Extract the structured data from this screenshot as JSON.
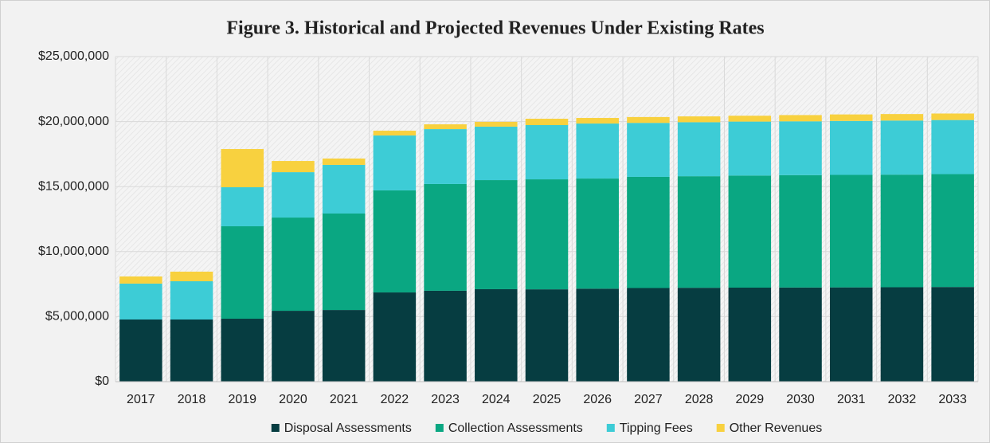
{
  "chart_data": {
    "type": "stacked_bar",
    "title": "Figure 3. Historical and Projected Revenues Under Existing Rates",
    "categories": [
      "2017",
      "2018",
      "2019",
      "2020",
      "2021",
      "2022",
      "2023",
      "2024",
      "2025",
      "2026",
      "2027",
      "2028",
      "2029",
      "2030",
      "2031",
      "2032",
      "2033"
    ],
    "series": [
      {
        "name": "Disposal Assessments",
        "color": "#063d41",
        "values": [
          4780000,
          4780000,
          4840000,
          5450000,
          5510000,
          6860000,
          6990000,
          7110000,
          7100000,
          7150000,
          7200000,
          7220000,
          7230000,
          7240000,
          7250000,
          7260000,
          7280000
        ]
      },
      {
        "name": "Collection Assessments",
        "color": "#0aa782",
        "values": [
          0,
          0,
          7110000,
          7170000,
          7420000,
          7850000,
          8210000,
          8390000,
          8460000,
          8470000,
          8550000,
          8580000,
          8620000,
          8640000,
          8650000,
          8660000,
          8680000
        ]
      },
      {
        "name": "Tipping Fees",
        "color": "#3dccd6",
        "values": [
          2760000,
          2940000,
          3000000,
          3490000,
          3740000,
          4220000,
          4220000,
          4110000,
          4170000,
          4230000,
          4150000,
          4150000,
          4150000,
          4140000,
          4150000,
          4160000,
          4160000
        ]
      },
      {
        "name": "Other Revenues",
        "color": "#f8d13f",
        "values": [
          550000,
          740000,
          2940000,
          860000,
          490000,
          370000,
          370000,
          370000,
          490000,
          430000,
          450000,
          450000,
          450000,
          480000,
          500000,
          500000,
          500000
        ]
      }
    ],
    "ylim": [
      0,
      25000000
    ],
    "yticks": [
      {
        "value": 0,
        "label": "$0"
      },
      {
        "value": 5000000,
        "label": "$5,000,000"
      },
      {
        "value": 10000000,
        "label": "$10,000,000"
      },
      {
        "value": 15000000,
        "label": "$15,000,000"
      },
      {
        "value": 20000000,
        "label": "$20,000,000"
      },
      {
        "value": 25000000,
        "label": "$25,000,000"
      }
    ],
    "grid": true,
    "legend": "bottom"
  }
}
